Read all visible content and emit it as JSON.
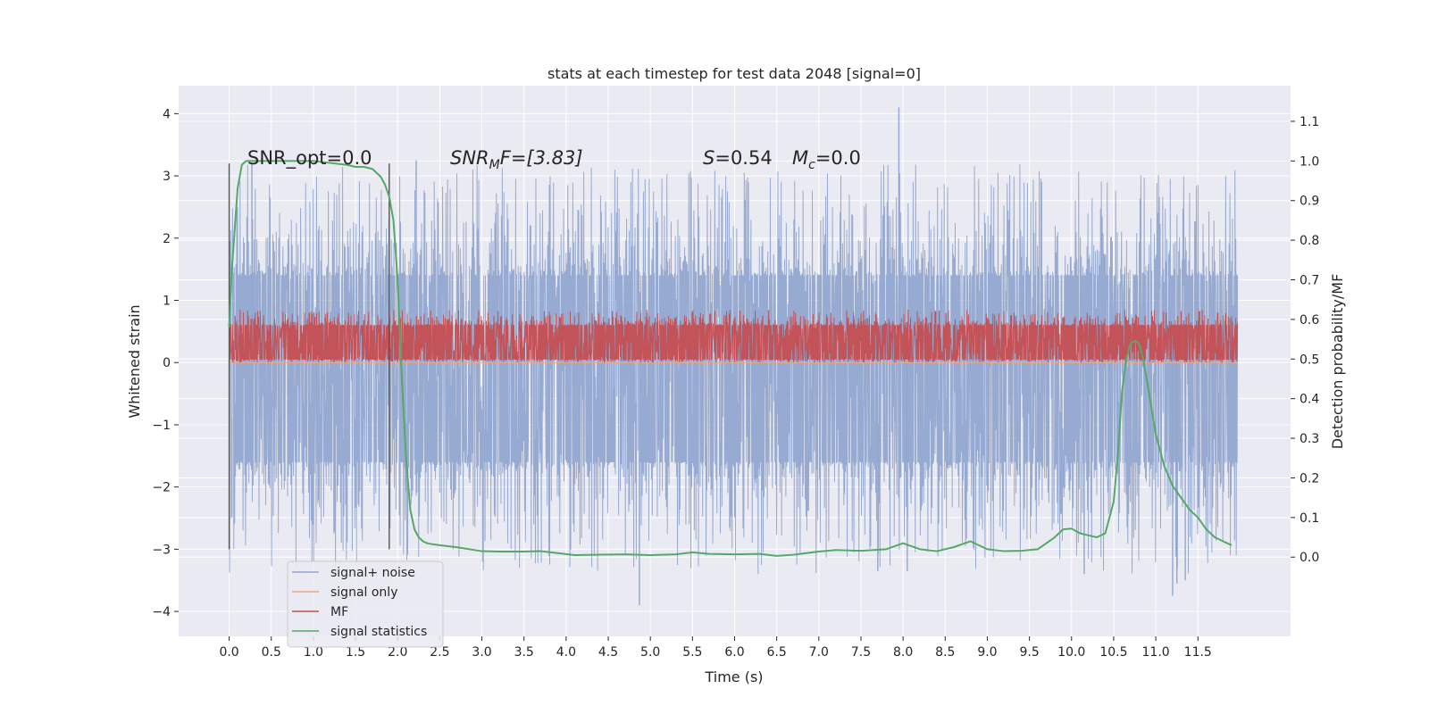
{
  "chart_data": {
    "type": "line",
    "title": "stats at each timestep for test data 2048 [signal=0]",
    "xlabel": "Time (s)",
    "ylabel": "Whitened strain",
    "y2label": "Detection probability/MF",
    "xlim": [
      -0.6,
      12.6
    ],
    "ylim": [
      -4.4,
      4.45
    ],
    "y2lim": [
      -0.2,
      1.19
    ],
    "x_ticks": [
      0.0,
      0.5,
      1.0,
      1.5,
      2.0,
      2.5,
      3.0,
      3.5,
      4.0,
      4.5,
      5.0,
      5.5,
      6.0,
      6.5,
      7.0,
      7.5,
      8.0,
      8.5,
      9.0,
      9.5,
      10.0,
      10.5,
      11.0,
      11.5
    ],
    "x_tick_labels": [
      "0.0",
      "0.5",
      "1.0",
      "1.5",
      "2.0",
      "2.5",
      "3.0",
      "3.5",
      "4.0",
      "4.5",
      "5.0",
      "5.5",
      "6.0",
      "6.5",
      "7.0",
      "7.5",
      "8.0",
      "8.5",
      "9.0",
      "9.5",
      "10.0",
      "10.5",
      "11.0",
      "11.5"
    ],
    "y_ticks": [
      -4,
      -3,
      -2,
      -1,
      0,
      1,
      2,
      3,
      4
    ],
    "y_tick_labels": [
      "−4",
      "−3",
      "−2",
      "−1",
      "0",
      "1",
      "2",
      "3",
      "4"
    ],
    "y2_ticks": [
      0.0,
      0.1,
      0.2,
      0.3,
      0.4,
      0.5,
      0.6,
      0.7,
      0.8,
      0.9,
      1.0,
      1.1
    ],
    "y2_tick_labels": [
      "0.0",
      "0.1",
      "0.2",
      "0.3",
      "0.4",
      "0.5",
      "0.6",
      "0.7",
      "0.8",
      "0.9",
      "1.0",
      "1.1"
    ],
    "grid": true,
    "legend_position": "lower-left",
    "annotations": {
      "snr_opt": "SNR_opt=0.0",
      "snr_mf_name": "SNR",
      "snr_mf_sub": "M",
      "snr_mf_suffix": "F=[3.83]",
      "s_name": "S",
      "s_value": "=0.54",
      "mc_name": "M",
      "mc_sub": "c",
      "mc_value": "=0.0"
    },
    "markers": [
      {
        "x": 0.0,
        "y_from": -3.0,
        "y_to": 3.2
      },
      {
        "x": 1.9,
        "y_from": -3.0,
        "y_to": 3.2
      }
    ],
    "series": [
      {
        "name": "signal+ noise",
        "color": "#92a6cf",
        "kind": "noise",
        "x_start": 0.0,
        "x_end": 11.97,
        "body_low": -1.6,
        "body_high": 1.4,
        "peak_high": 3.2,
        "peak_low": -3.4,
        "outliers": [
          {
            "x": 7.95,
            "y": 4.1
          },
          {
            "x": 0.27,
            "y": 3.2
          },
          {
            "x": 2.22,
            "y": 3.25
          },
          {
            "x": 4.87,
            "y": -3.9
          },
          {
            "x": 11.2,
            "y": -3.75
          },
          {
            "x": 11.25,
            "y": -3.55
          },
          {
            "x": 11.35,
            "y": -3.5
          },
          {
            "x": 7.7,
            "y": -3.35
          },
          {
            "x": 10.15,
            "y": -3.4
          },
          {
            "x": 8.05,
            "y": -3.35
          }
        ]
      },
      {
        "name": "signal only",
        "color": "#e9a88a",
        "kind": "flat",
        "values_x": [
          0.0,
          11.97
        ],
        "values_y": [
          0.0,
          0.0
        ]
      },
      {
        "name": "MF",
        "color": "#c44e52",
        "kind": "noise",
        "x_start": 0.0,
        "x_end": 11.97,
        "body_low": 0.05,
        "body_high": 0.6,
        "peak_high": 0.85,
        "peak_low": 0.0,
        "outliers": []
      },
      {
        "name": "signal statistics",
        "color": "#55a868",
        "kind": "line",
        "axis": "right",
        "x": [
          0.0,
          0.03,
          0.1,
          0.15,
          0.2,
          0.3,
          0.5,
          0.8,
          1.0,
          1.2,
          1.4,
          1.5,
          1.6,
          1.7,
          1.8,
          1.85,
          1.9,
          1.95,
          2.0,
          2.05,
          2.1,
          2.15,
          2.2,
          2.25,
          2.3,
          2.35,
          2.4,
          2.5,
          2.7,
          3.0,
          3.2,
          3.5,
          3.7,
          3.9,
          4.1,
          4.4,
          4.7,
          5.0,
          5.3,
          5.5,
          5.7,
          6.0,
          6.3,
          6.5,
          6.7,
          7.0,
          7.2,
          7.5,
          7.8,
          8.0,
          8.2,
          8.4,
          8.6,
          8.8,
          9.0,
          9.2,
          9.4,
          9.6,
          9.8,
          9.9,
          10.0,
          10.1,
          10.2,
          10.3,
          10.4,
          10.5,
          10.55,
          10.6,
          10.65,
          10.7,
          10.75,
          10.8,
          10.85,
          10.9,
          11.0,
          11.1,
          11.2,
          11.3,
          11.4,
          11.5,
          11.6,
          11.7,
          11.8,
          11.9
        ],
        "y": [
          0.58,
          0.72,
          0.93,
          0.99,
          1.0,
          1.0,
          1.0,
          1.0,
          1.0,
          0.995,
          0.99,
          0.985,
          0.985,
          0.98,
          0.96,
          0.94,
          0.91,
          0.85,
          0.7,
          0.45,
          0.25,
          0.12,
          0.07,
          0.05,
          0.04,
          0.035,
          0.033,
          0.03,
          0.025,
          0.015,
          0.014,
          0.014,
          0.015,
          0.01,
          0.005,
          0.006,
          0.007,
          0.005,
          0.007,
          0.012,
          0.008,
          0.007,
          0.008,
          0.003,
          0.006,
          0.014,
          0.018,
          0.016,
          0.02,
          0.035,
          0.02,
          0.015,
          0.025,
          0.04,
          0.02,
          0.015,
          0.016,
          0.02,
          0.05,
          0.07,
          0.072,
          0.06,
          0.055,
          0.05,
          0.06,
          0.14,
          0.26,
          0.42,
          0.5,
          0.54,
          0.545,
          0.54,
          0.5,
          0.44,
          0.31,
          0.23,
          0.18,
          0.15,
          0.12,
          0.1,
          0.07,
          0.05,
          0.04,
          0.03
        ]
      }
    ]
  }
}
